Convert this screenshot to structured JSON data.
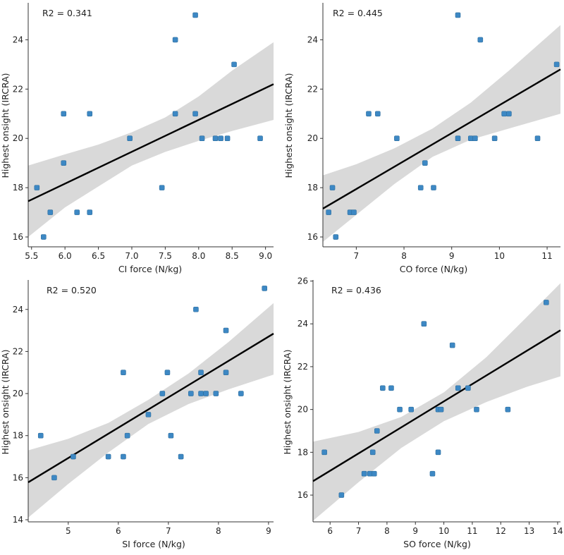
{
  "colors": {
    "point": "#3d88c4",
    "point_edge": "#2f6f9f",
    "fit_line": "#000000",
    "ci_band": "#d9d9d9",
    "axis": "#333333"
  },
  "chart_data": [
    {
      "type": "scatter",
      "title": "",
      "annotation": "R2 = 0.341",
      "xlabel": "CI force (N/kg)",
      "ylabel": "Highest onsight (IRCRA)",
      "xlim": [
        5.45,
        9.12
      ],
      "ylim": [
        15.6,
        25.5
      ],
      "xticks": [
        5.5,
        6.0,
        6.5,
        7.0,
        7.5,
        8.0,
        8.5,
        9.0
      ],
      "xtick_labels": [
        "5.5",
        "6.0",
        "6.5",
        "7.0",
        "7.5",
        "8.0",
        "8.5",
        "9.0"
      ],
      "yticks": [
        16,
        18,
        20,
        22,
        24
      ],
      "ytick_labels": [
        "16",
        "18",
        "20",
        "22",
        "24"
      ],
      "points": [
        [
          5.58,
          18
        ],
        [
          5.68,
          16
        ],
        [
          5.78,
          17
        ],
        [
          5.98,
          19
        ],
        [
          5.98,
          21
        ],
        [
          6.18,
          17
        ],
        [
          6.37,
          17
        ],
        [
          6.37,
          21
        ],
        [
          6.97,
          20
        ],
        [
          7.45,
          18
        ],
        [
          7.65,
          24
        ],
        [
          7.65,
          21
        ],
        [
          7.95,
          25
        ],
        [
          7.95,
          21
        ],
        [
          8.05,
          20
        ],
        [
          8.25,
          20
        ],
        [
          8.33,
          20
        ],
        [
          8.43,
          20
        ],
        [
          8.53,
          23
        ],
        [
          8.92,
          20
        ]
      ],
      "fit": {
        "x": [
          5.45,
          9.12
        ],
        "y": [
          17.45,
          22.2
        ]
      },
      "band": {
        "x": [
          5.45,
          6.0,
          6.5,
          7.0,
          7.5,
          8.0,
          8.5,
          9.12
        ],
        "lower": [
          16.0,
          17.2,
          18.05,
          18.9,
          19.45,
          19.9,
          20.3,
          20.75
        ],
        "upper": [
          18.9,
          19.35,
          19.75,
          20.25,
          20.85,
          21.7,
          22.75,
          23.9
        ]
      }
    },
    {
      "type": "scatter",
      "title": "",
      "annotation": "R2 = 0.445",
      "xlabel": "CO force (N/kg)",
      "ylabel": "Highest onsight (IRCRA)",
      "xlim": [
        6.3,
        11.28
      ],
      "ylim": [
        15.6,
        25.5
      ],
      "xticks": [
        7,
        8,
        9,
        10,
        11
      ],
      "xtick_labels": [
        "7",
        "8",
        "9",
        "10",
        "11"
      ],
      "yticks": [
        16,
        18,
        20,
        22,
        24
      ],
      "ytick_labels": [
        "16",
        "18",
        "20",
        "22",
        "24"
      ],
      "points": [
        [
          6.42,
          17
        ],
        [
          6.5,
          18
        ],
        [
          6.57,
          16
        ],
        [
          6.87,
          17
        ],
        [
          6.95,
          17
        ],
        [
          7.26,
          21
        ],
        [
          7.45,
          21
        ],
        [
          7.85,
          20
        ],
        [
          8.35,
          18
        ],
        [
          8.44,
          19
        ],
        [
          8.62,
          18
        ],
        [
          9.13,
          25
        ],
        [
          9.13,
          20
        ],
        [
          9.4,
          20
        ],
        [
          9.49,
          20
        ],
        [
          9.6,
          24
        ],
        [
          9.9,
          20
        ],
        [
          10.1,
          21
        ],
        [
          10.2,
          21
        ],
        [
          10.8,
          20
        ],
        [
          11.2,
          23
        ]
      ],
      "fit": {
        "x": [
          6.3,
          11.28
        ],
        "y": [
          17.15,
          22.8
        ]
      },
      "band": {
        "x": [
          6.3,
          7.0,
          7.8,
          8.6,
          9.4,
          10.2,
          11.28
        ],
        "lower": [
          15.8,
          16.9,
          18.15,
          19.25,
          19.95,
          20.4,
          21.0
        ],
        "upper": [
          18.5,
          18.95,
          19.6,
          20.4,
          21.45,
          22.75,
          24.6
        ]
      }
    },
    {
      "type": "scatter",
      "title": "",
      "annotation": "R2 = 0.520",
      "xlabel": "SI force (N/kg)",
      "ylabel": "Highest onsight (IRCRA)",
      "xlim": [
        4.2,
        9.1
      ],
      "ylim": [
        13.9,
        25.4
      ],
      "xticks": [
        5,
        6,
        7,
        8,
        9
      ],
      "xtick_labels": [
        "5",
        "6",
        "7",
        "8",
        "9"
      ],
      "yticks": [
        14,
        16,
        18,
        20,
        22,
        24
      ],
      "ytick_labels": [
        "14",
        "16",
        "18",
        "20",
        "22",
        "24"
      ],
      "points": [
        [
          4.45,
          18
        ],
        [
          4.72,
          16
        ],
        [
          5.1,
          17
        ],
        [
          5.8,
          17
        ],
        [
          6.1,
          17
        ],
        [
          6.1,
          21
        ],
        [
          6.18,
          18
        ],
        [
          6.6,
          19
        ],
        [
          6.88,
          20
        ],
        [
          6.98,
          21
        ],
        [
          7.05,
          18
        ],
        [
          7.25,
          17
        ],
        [
          7.45,
          20
        ],
        [
          7.55,
          24
        ],
        [
          7.65,
          21
        ],
        [
          7.65,
          20
        ],
        [
          7.75,
          20
        ],
        [
          7.95,
          20
        ],
        [
          8.15,
          23
        ],
        [
          8.15,
          21
        ],
        [
          8.45,
          20
        ],
        [
          8.92,
          25
        ]
      ],
      "fit": {
        "x": [
          4.2,
          9.1
        ],
        "y": [
          15.78,
          22.85
        ]
      },
      "band": {
        "x": [
          4.2,
          5.0,
          5.8,
          6.6,
          7.4,
          8.2,
          9.1
        ],
        "lower": [
          14.1,
          15.7,
          17.2,
          18.55,
          19.5,
          20.2,
          20.9
        ],
        "upper": [
          17.3,
          17.85,
          18.6,
          19.7,
          20.95,
          22.45,
          24.3
        ]
      }
    },
    {
      "type": "scatter",
      "title": "",
      "annotation": "R2 = 0.436",
      "xlabel": "SO force (N/kg)",
      "ylabel": "Highest onsight (IRCRA)",
      "xlim": [
        5.4,
        14.1
      ],
      "ylim": [
        14.75,
        26.05
      ],
      "xticks": [
        6,
        7,
        8,
        9,
        10,
        11,
        12,
        13,
        14
      ],
      "xtick_labels": [
        "6",
        "7",
        "8",
        "9",
        "10",
        "11",
        "12",
        "13",
        "14"
      ],
      "yticks": [
        16,
        18,
        20,
        22,
        24,
        26
      ],
      "ytick_labels": [
        "16",
        "18",
        "20",
        "22",
        "24",
        "26"
      ],
      "points": [
        [
          5.8,
          18
        ],
        [
          6.4,
          16
        ],
        [
          7.2,
          17
        ],
        [
          7.4,
          17
        ],
        [
          7.55,
          17
        ],
        [
          7.5,
          18
        ],
        [
          7.65,
          19
        ],
        [
          7.85,
          21
        ],
        [
          8.15,
          21
        ],
        [
          8.45,
          20
        ],
        [
          8.85,
          20
        ],
        [
          9.3,
          24
        ],
        [
          9.6,
          17
        ],
        [
          9.8,
          18
        ],
        [
          9.8,
          20
        ],
        [
          9.9,
          20
        ],
        [
          10.3,
          23
        ],
        [
          10.5,
          21
        ],
        [
          10.85,
          21
        ],
        [
          11.15,
          20
        ],
        [
          12.25,
          20
        ],
        [
          13.6,
          25
        ]
      ],
      "fit": {
        "x": [
          5.4,
          14.1
        ],
        "y": [
          16.65,
          23.7
        ]
      },
      "band": {
        "x": [
          5.4,
          7.0,
          8.5,
          10.0,
          11.5,
          12.9,
          14.1
        ],
        "lower": [
          14.8,
          16.6,
          18.2,
          19.45,
          20.35,
          21.05,
          21.55
        ],
        "upper": [
          18.5,
          18.95,
          19.65,
          20.8,
          22.45,
          24.3,
          25.9
        ]
      }
    }
  ]
}
